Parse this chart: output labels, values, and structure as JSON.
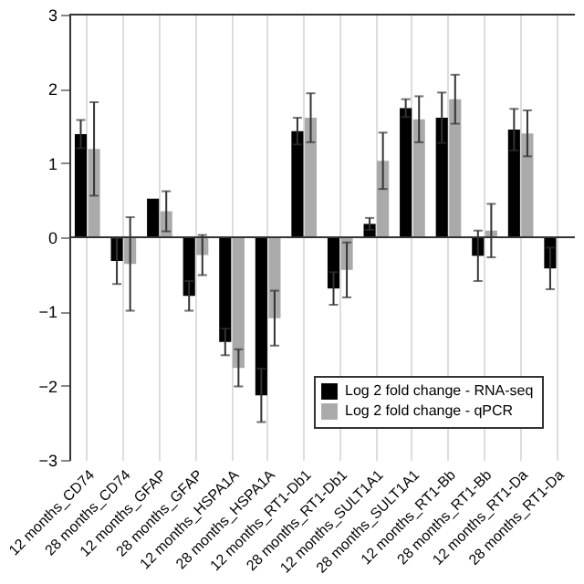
{
  "chart_data": {
    "type": "bar",
    "categories": [
      "12 months_CD74",
      "28 months_CD74",
      "12 months_GFAP",
      "28 months_GFAP",
      "12 months_HSPA1A",
      "28 months_HSPA1A",
      "12 months_RT1-Db1",
      "28 months_RT1-Db1",
      "12 months_SULT1A1",
      "28 months_SULT1A1",
      "12 months_RT1-Bb",
      "28 months_RT1-Bb",
      "12 months_RT1-Da",
      "28 months_RT1-Da"
    ],
    "series": [
      {
        "name": "Log 2 fold change - RNA-seq",
        "color": "#000000",
        "values": [
          1.39,
          -0.32,
          0.52,
          -0.79,
          -1.41,
          -2.13,
          1.43,
          -0.69,
          0.18,
          1.74,
          1.61,
          -0.25,
          1.45,
          -0.42
        ],
        "errors": [
          0.19,
          0.31,
          null,
          0.2,
          0.18,
          0.36,
          0.18,
          0.22,
          0.08,
          0.12,
          0.34,
          0.34,
          0.28,
          0.28
        ]
      },
      {
        "name": "Log 2 fold change - qPCR",
        "color": "#aaaaaa",
        "values": [
          1.19,
          -0.36,
          0.35,
          -0.24,
          -1.76,
          -1.09,
          1.61,
          -0.44,
          1.03,
          1.59,
          1.86,
          0.09,
          1.4,
          null
        ],
        "errors": [
          0.63,
          0.63,
          0.27,
          0.27,
          0.25,
          0.37,
          0.33,
          0.37,
          0.38,
          0.31,
          0.33,
          0.36,
          0.31,
          null
        ]
      }
    ],
    "ylim": [
      -3,
      3
    ],
    "yticks": [
      -3,
      -2,
      -1,
      0,
      1,
      2,
      3
    ],
    "grid": "x",
    "legend": "bottom right"
  }
}
